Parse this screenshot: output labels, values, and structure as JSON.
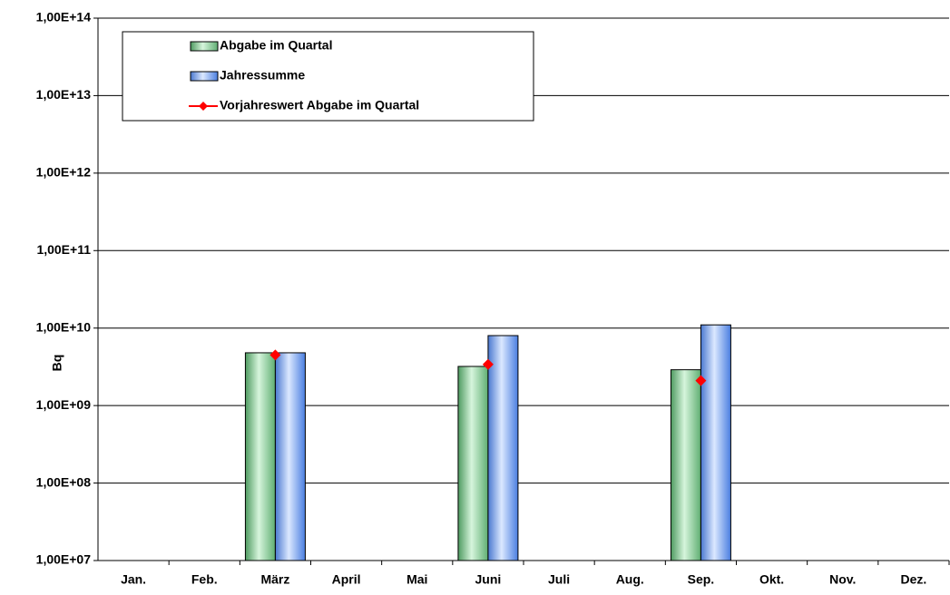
{
  "chart_data": {
    "type": "bar",
    "ylabel": "Bq",
    "categories": [
      "Jan.",
      "Feb.",
      "März",
      "April",
      "Mai",
      "Juni",
      "Juli",
      "Aug.",
      "Sep.",
      "Okt.",
      "Nov.",
      "Dez."
    ],
    "series": [
      {
        "name": "Abgabe im Quartal",
        "color": "#8fdca0",
        "values": [
          null,
          null,
          4800000000,
          null,
          null,
          3200000000,
          null,
          null,
          2900000000,
          null,
          null,
          null
        ]
      },
      {
        "name": "Jahressumme",
        "color": "#8ab4f8",
        "values": [
          null,
          null,
          4800000000,
          null,
          null,
          8000000000,
          null,
          null,
          11000000000,
          null,
          null,
          null
        ]
      },
      {
        "name": "Vorjahreswert Abgabe im Quartal",
        "color": "#ff0000",
        "type": "scatter",
        "values": [
          null,
          null,
          4500000000,
          null,
          null,
          3400000000,
          null,
          null,
          2100000000,
          null,
          null,
          null
        ]
      }
    ],
    "log_scale": true,
    "ylim": [
      10000000,
      100000000000000
    ],
    "yticks": [
      {
        "value": 10000000,
        "label": "1,00E+07"
      },
      {
        "value": 100000000,
        "label": "1,00E+08"
      },
      {
        "value": 1000000000,
        "label": "1,00E+09"
      },
      {
        "value": 10000000000,
        "label": "1,00E+10"
      },
      {
        "value": 100000000000,
        "label": "1,00E+11"
      },
      {
        "value": 1000000000000,
        "label": "1,00E+12"
      },
      {
        "value": 10000000000000,
        "label": "1,00E+13"
      },
      {
        "value": 100000000000000,
        "label": "1,00E+14"
      }
    ],
    "grid": true,
    "legend": "upper left"
  }
}
